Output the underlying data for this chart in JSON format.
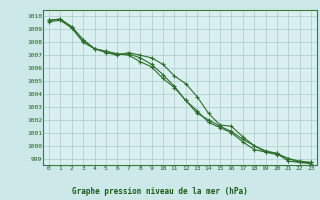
{
  "title": "Graphe pression niveau de la mer (hPa)",
  "xlabel_hours": [
    0,
    1,
    2,
    3,
    4,
    5,
    6,
    7,
    8,
    9,
    10,
    11,
    12,
    13,
    14,
    15,
    16,
    17,
    18,
    19,
    20,
    21,
    22,
    23
  ],
  "ylim": [
    998.5,
    1010.5
  ],
  "yticks": [
    999,
    1000,
    1001,
    1002,
    1003,
    1004,
    1005,
    1006,
    1007,
    1008,
    1009,
    1010
  ],
  "line1": [
    1009.7,
    1009.8,
    1009.2,
    1008.2,
    1007.5,
    1007.3,
    1007.1,
    1007.0,
    1006.5,
    1006.1,
    1005.2,
    1004.5,
    1003.5,
    1002.7,
    1001.8,
    1001.4,
    1001.0,
    1000.3,
    999.7,
    999.5,
    999.4,
    998.8,
    998.7,
    998.7
  ],
  "line2": [
    1009.7,
    1009.8,
    1009.2,
    1008.2,
    1007.5,
    1007.3,
    1007.1,
    1007.1,
    1006.8,
    1006.3,
    1005.5,
    1004.6,
    1003.5,
    1002.5,
    1002.0,
    1001.5,
    1001.1,
    1000.5,
    1000.0,
    999.5,
    999.3,
    999.0,
    998.7,
    998.6
  ],
  "line3": [
    1009.6,
    1009.7,
    1009.1,
    1008.0,
    1007.5,
    1007.2,
    1007.0,
    1007.2,
    1007.0,
    1006.8,
    1006.3,
    1005.4,
    1004.8,
    1003.8,
    1002.5,
    1001.6,
    1001.5,
    1000.7,
    1000.0,
    999.6,
    999.4,
    999.0,
    998.8,
    998.7
  ],
  "bg_color": "#cce8e8",
  "grid_color": "#aacccc",
  "line_color": "#2d6e2d",
  "axis_bg": "#daf0f0",
  "border_color": "#3a7a3a",
  "title_color": "#1a5a1a",
  "tick_color": "#1a5a1a",
  "marker": "+",
  "markersize": 3,
  "linewidth": 0.8
}
